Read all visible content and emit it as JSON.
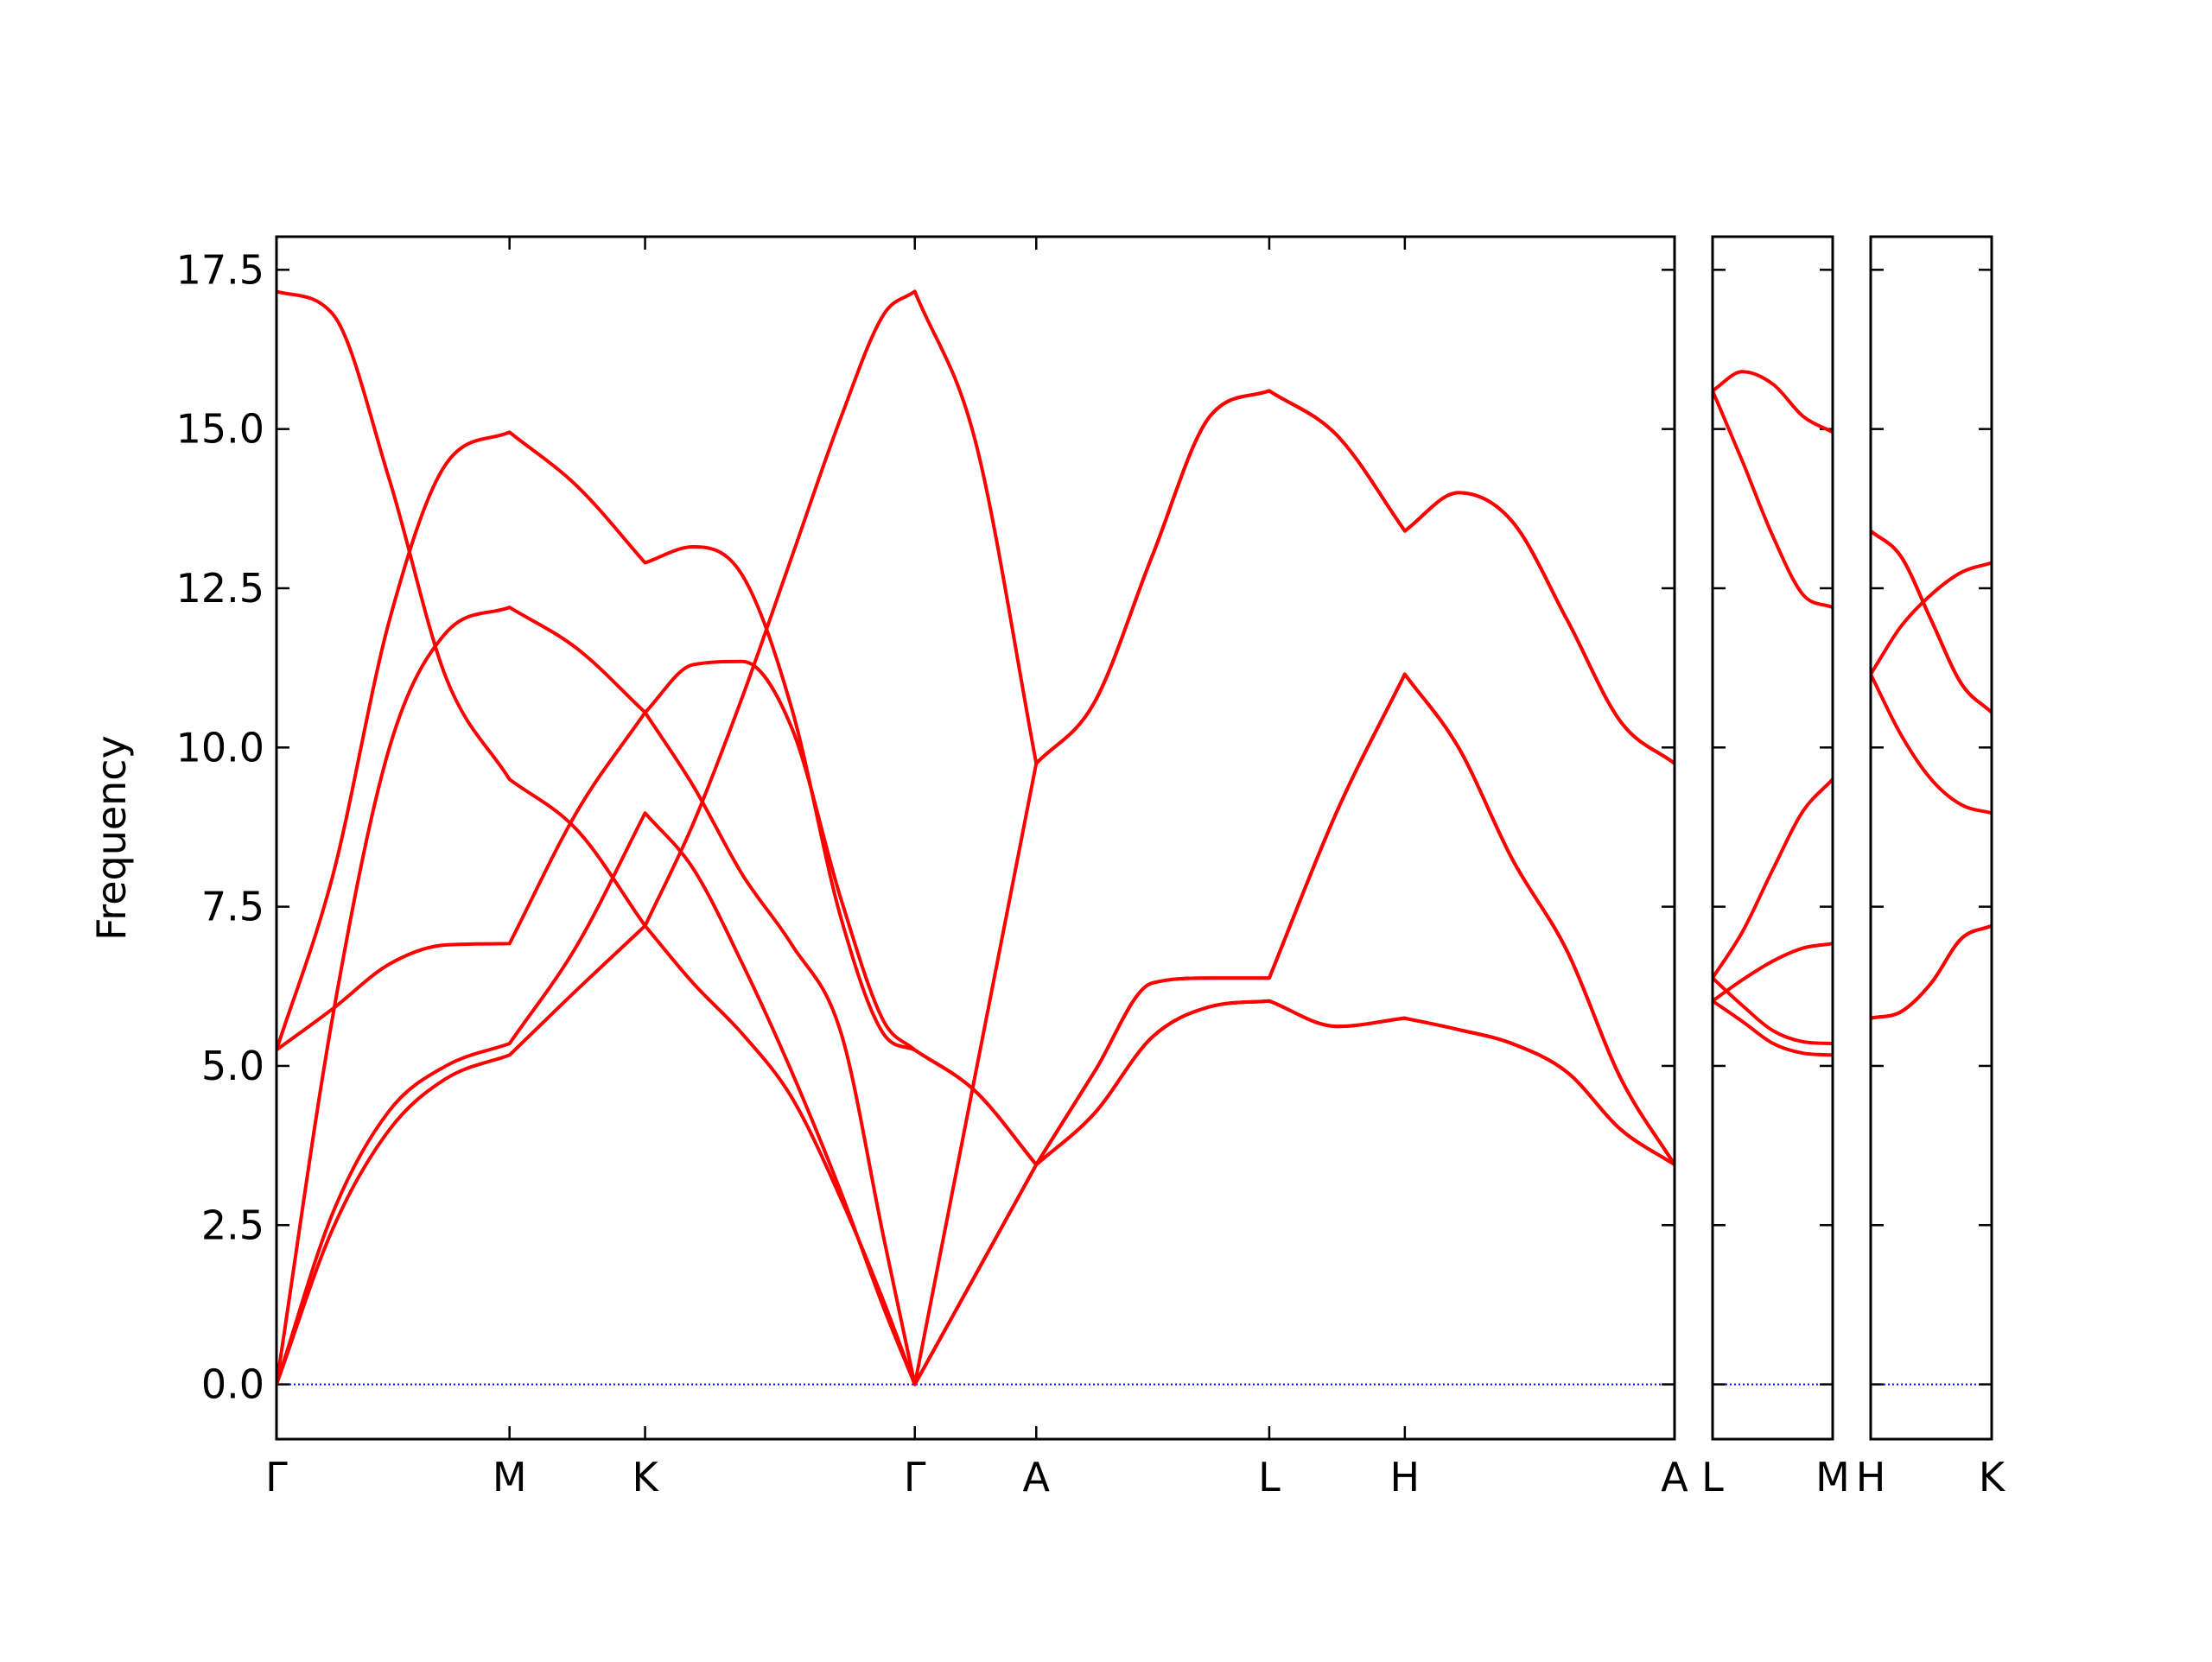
{
  "chart_data": [
    {
      "type": "line",
      "ylabel": "Frequency",
      "line_color": "#ff0000",
      "hline": 0,
      "hline_color": "#0000ff",
      "ytick_labels": true,
      "x": [
        0,
        0.4,
        0.8,
        1.2,
        1.65,
        2.13,
        2.61,
        2.95,
        3.3,
        3.65,
        4.0,
        4.3,
        4.52,
        4.95,
        5.38,
        5.79,
        6.2,
        6.61,
        7.03,
        7.51,
        7.99,
        8.37,
        8.75,
        9.14,
        9.52,
        9.9
      ],
      "xlim": [
        0,
        9.9
      ],
      "xticks": [
        {
          "value": 0,
          "label": "Γ"
        },
        {
          "value": 1.65,
          "label": "M"
        },
        {
          "value": 2.61,
          "label": "K"
        },
        {
          "value": 4.52,
          "label": "Γ"
        },
        {
          "value": 5.38,
          "label": "A"
        },
        {
          "value": 7.03,
          "label": "L"
        },
        {
          "value": 7.99,
          "label": "H"
        },
        {
          "value": 9.9,
          "label": "A"
        }
      ],
      "ylim": [
        -0.86,
        18.02
      ],
      "yticks": [
        {
          "value": 0,
          "label": "0.0"
        },
        2.5,
        {
          "value": 5,
          "label": "5.0"
        },
        7.5,
        {
          "value": 10,
          "label": "10.0"
        },
        12.5,
        {
          "value": 15,
          "label": "15.0"
        },
        17.5
      ],
      "series": [
        {
          "values": [
            0,
            2.45,
            4.0,
            4.8,
            5.17,
            6.2,
            7.2,
            8.8,
            10.8,
            13.0,
            15.2,
            16.8,
            17.16,
            14.8,
            9.75,
            10.7,
            13.0,
            15.2,
            15.6,
            14.9,
            13.4,
            14.0,
            13.55,
            12.0,
            10.4,
            9.75
          ]
        },
        {
          "values": [
            0,
            2.7,
            4.3,
            5.0,
            5.35,
            6.9,
            8.97,
            8.1,
            6.6,
            4.9,
            3.0,
            1.2,
            0,
            4.88,
            9.75,
            10.7,
            13.0,
            15.2,
            15.6,
            14.9,
            13.4,
            14.0,
            13.55,
            12.0,
            10.4,
            9.75
          ]
        },
        {
          "values": [
            0,
            5.8,
            10.0,
            11.8,
            12.2,
            11.55,
            10.55,
            11.3,
            11.35,
            10.3,
            7.6,
            5.7,
            5.25,
            4.6,
            3.45,
            4.9,
            6.3,
            6.38,
            6.38,
            9.0,
            11.15,
            10.0,
            8.25,
            6.8,
            4.8,
            3.45
          ]
        },
        {
          "values": [
            5.25,
            5.9,
            6.6,
            6.9,
            6.92,
            9.0,
            10.55,
            9.4,
            8.0,
            6.9,
            5.5,
            2.3,
            0,
            1.72,
            3.45,
            4.25,
            5.45,
            5.93,
            6.02,
            5.62,
            5.75,
            5.57,
            5.35,
            4.9,
            4.0,
            3.45
          ]
        },
        {
          "values": [
            5.25,
            8.0,
            12.0,
            14.45,
            14.95,
            14.1,
            12.9,
            13.15,
            12.7,
            10.6,
            7.3,
            5.5,
            5.25,
            4.6,
            3.45,
            4.9,
            6.3,
            6.38,
            6.38,
            9.0,
            11.15,
            10.0,
            8.25,
            6.8,
            4.8,
            3.45
          ]
        },
        {
          "values": [
            17.16,
            16.8,
            14.2,
            11.1,
            9.5,
            8.7,
            7.2,
            6.3,
            5.5,
            4.5,
            2.9,
            1.3,
            0,
            1.72,
            3.45,
            4.25,
            5.45,
            5.93,
            6.02,
            5.62,
            5.75,
            5.57,
            5.35,
            4.9,
            4.0,
            3.45
          ]
        }
      ]
    },
    {
      "type": "line",
      "line_color": "#ff0000",
      "hline": 0,
      "hline_color": "#0000ff",
      "ytick_labels": false,
      "x": [
        0,
        0.21,
        0.43,
        0.64,
        0.85
      ],
      "xlim": [
        0,
        0.85
      ],
      "xticks": [
        {
          "value": 0,
          "label": "L"
        },
        {
          "value": 0.85,
          "label": "M"
        }
      ],
      "ylim": [
        -0.86,
        18.02
      ],
      "yticks": [
        0,
        2.5,
        5,
        7.5,
        10,
        12.5,
        15,
        17.5
      ],
      "series": [
        {
          "values": [
            15.6,
            15.9,
            15.7,
            15.2,
            14.95
          ]
        },
        {
          "values": [
            15.6,
            14.5,
            13.3,
            12.4,
            12.2
          ]
        },
        {
          "values": [
            6.38,
            7.1,
            8.1,
            9.0,
            9.5
          ]
        },
        {
          "values": [
            6.02,
            6.35,
            6.65,
            6.85,
            6.92
          ]
        },
        {
          "values": [
            6.38,
            5.95,
            5.55,
            5.38,
            5.35
          ]
        },
        {
          "values": [
            6.02,
            5.7,
            5.35,
            5.2,
            5.17
          ]
        }
      ]
    },
    {
      "type": "line",
      "line_color": "#ff0000",
      "hline": 0,
      "hline_color": "#0000ff",
      "ytick_labels": false,
      "x": [
        0,
        0.215,
        0.43,
        0.645,
        0.86
      ],
      "xlim": [
        0,
        0.86
      ],
      "xticks": [
        {
          "value": 0,
          "label": "H"
        },
        {
          "value": 0.86,
          "label": "K"
        }
      ],
      "ylim": [
        -0.86,
        18.02
      ],
      "yticks": [
        0,
        2.5,
        5,
        7.5,
        10,
        12.5,
        15,
        17.5
      ],
      "series": [
        {
          "values": [
            13.4,
            13.0,
            12.0,
            11.0,
            10.55
          ]
        },
        {
          "values": [
            13.4,
            13.0,
            12.0,
            11.0,
            10.55
          ]
        },
        {
          "values": [
            11.15,
            11.9,
            12.4,
            12.75,
            12.9
          ]
        },
        {
          "values": [
            11.15,
            10.2,
            9.5,
            9.1,
            8.97
          ]
        },
        {
          "values": [
            5.75,
            5.85,
            6.3,
            7.0,
            7.2
          ]
        },
        {
          "values": [
            5.75,
            5.85,
            6.3,
            7.0,
            7.2
          ]
        }
      ]
    }
  ]
}
